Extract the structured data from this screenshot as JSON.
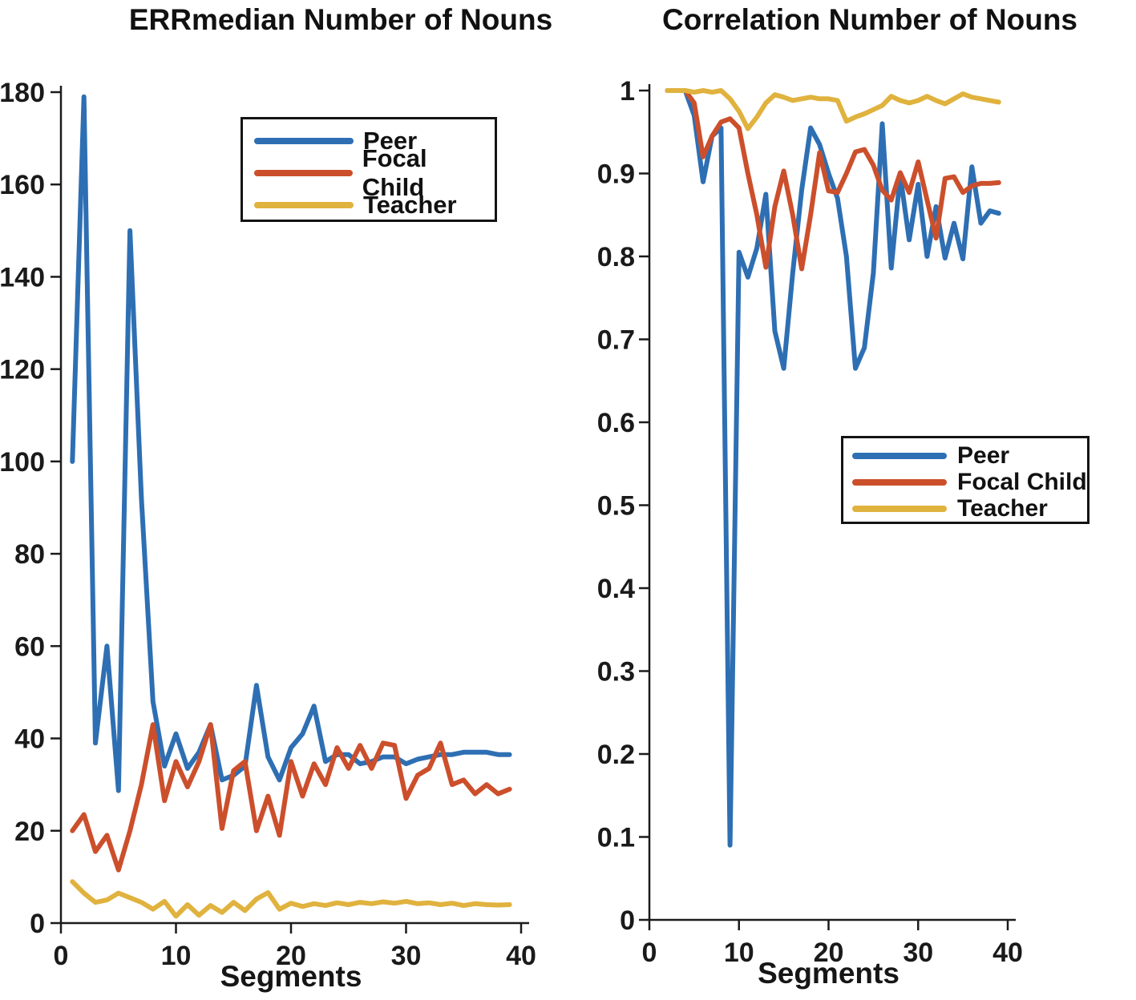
{
  "figure": {
    "background": "#ffffff"
  },
  "colors": {
    "peer": "#2E6FB3",
    "focal": "#CC4F2C",
    "teacher": "#E0B23E",
    "axis": "#1B1B1B",
    "text": "#1A1A1A"
  },
  "legend": {
    "items": [
      {
        "label": "Peer",
        "color": "colors.peer"
      },
      {
        "label": "Focal Child",
        "color": "colors.focal"
      },
      {
        "label": "Teacher",
        "color": "colors.teacher"
      }
    ]
  },
  "chart_data": [
    {
      "type": "line",
      "title": "ERRmedian Number of Nouns",
      "xlabel": "Segments",
      "ylabel": "",
      "xlim": [
        0,
        40
      ],
      "ylim": [
        0,
        180
      ],
      "x_ticks": [
        0,
        10,
        20,
        30,
        40
      ],
      "y_ticks": [
        0,
        20,
        40,
        60,
        80,
        100,
        120,
        140,
        160,
        180
      ],
      "grid": false,
      "legend_position": "upper center",
      "x_start": 1,
      "series": [
        {
          "name": "Peer",
          "color": "peer",
          "values": [
            100,
            179,
            39,
            60,
            28.7,
            150,
            92,
            48,
            34,
            41,
            33.5,
            37,
            43,
            31,
            32,
            34,
            51.5,
            36,
            31,
            38,
            41,
            47,
            35,
            36.5,
            36.5,
            34.5,
            35,
            36,
            36,
            34.5,
            35.5,
            36,
            36.5,
            36.5,
            37,
            37,
            37,
            36.5,
            36.5
          ]
        },
        {
          "name": "Focal Child",
          "color": "focal",
          "values": [
            20,
            23.5,
            15.5,
            19,
            11.5,
            20,
            30,
            43,
            26.5,
            35,
            29.5,
            35,
            43,
            20.5,
            33,
            35,
            20,
            27.5,
            19,
            35,
            27.5,
            34.5,
            30,
            38,
            33.5,
            38.5,
            33.5,
            39,
            38.5,
            27,
            32,
            33.5,
            39,
            30,
            31,
            28,
            30,
            28,
            29
          ]
        },
        {
          "name": "Teacher",
          "color": "teacher",
          "values": [
            9,
            6.5,
            4.5,
            5,
            6.5,
            5.5,
            4.5,
            3,
            4.7,
            1.5,
            4,
            1.7,
            3.8,
            2.3,
            4.5,
            2.7,
            5.2,
            6.6,
            3,
            4.3,
            3.6,
            4.2,
            3.8,
            4.4,
            4,
            4.5,
            4.2,
            4.6,
            4.3,
            4.7,
            4.2,
            4.4,
            4,
            4.3,
            3.8,
            4.2,
            4,
            3.9,
            4
          ]
        }
      ]
    },
    {
      "type": "line",
      "title": "Correlation Number of Nouns",
      "xlabel": "Segments",
      "ylabel": "",
      "xlim": [
        0,
        40
      ],
      "ylim": [
        0,
        1
      ],
      "x_ticks": [
        0,
        10,
        20,
        30,
        40
      ],
      "y_ticks": [
        0,
        0.1,
        0.2,
        0.3,
        0.4,
        0.5,
        0.6,
        0.7,
        0.8,
        0.9,
        1
      ],
      "grid": false,
      "legend_position": "middle right",
      "x_start": 2,
      "series": [
        {
          "name": "Peer",
          "color": "peer",
          "values": [
            1.0,
            1.0,
            1.0,
            0.97,
            0.89,
            0.945,
            0.955,
            0.09,
            0.805,
            0.775,
            0.81,
            0.875,
            0.71,
            0.665,
            0.78,
            0.88,
            0.955,
            0.935,
            0.9,
            0.87,
            0.8,
            0.665,
            0.69,
            0.78,
            0.96,
            0.786,
            0.898,
            0.82,
            0.887,
            0.8,
            0.86,
            0.798,
            0.84,
            0.797,
            0.908,
            0.84,
            0.855,
            0.852
          ]
        },
        {
          "name": "Focal Child",
          "color": "focal",
          "values": [
            1.0,
            1.0,
            1.0,
            0.985,
            0.92,
            0.945,
            0.962,
            0.966,
            0.955,
            0.9,
            0.85,
            0.787,
            0.86,
            0.903,
            0.85,
            0.785,
            0.85,
            0.925,
            0.879,
            0.877,
            0.9,
            0.926,
            0.929,
            0.91,
            0.88,
            0.868,
            0.901,
            0.877,
            0.914,
            0.868,
            0.822,
            0.894,
            0.896,
            0.877,
            0.885,
            0.888,
            0.888,
            0.889
          ]
        },
        {
          "name": "Teacher",
          "color": "teacher",
          "values": [
            1.0,
            1.0,
            1.0,
            0.998,
            1.0,
            0.998,
            1.0,
            0.99,
            0.975,
            0.954,
            0.968,
            0.985,
            0.995,
            0.992,
            0.988,
            0.99,
            0.992,
            0.99,
            0.99,
            0.988,
            0.963,
            0.968,
            0.972,
            0.977,
            0.982,
            0.993,
            0.988,
            0.985,
            0.988,
            0.993,
            0.988,
            0.984,
            0.99,
            0.996,
            0.992,
            0.99,
            0.988,
            0.986
          ]
        }
      ]
    }
  ]
}
